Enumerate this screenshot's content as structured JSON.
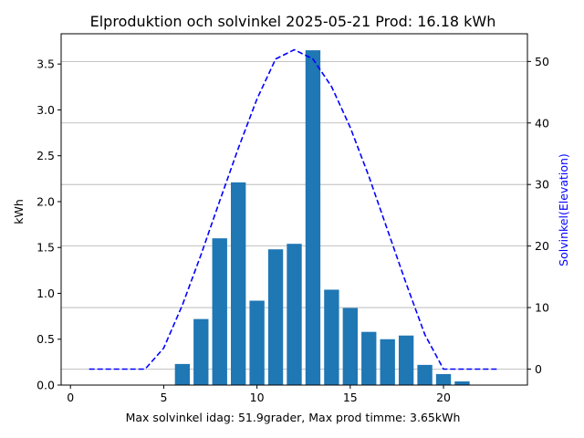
{
  "chart_data": {
    "type": "bar",
    "title": "Elproduktion och solvinkel 2025-05-21 Prod: 16.18 kWh",
    "xlabel": "Max solvinkel idag: 51.9grader, Max prod timme: 3.65kWh",
    "ylabel": "kWh",
    "y2label": "Solvinkel(Elevation)",
    "xlim": [
      -0.5,
      24.5
    ],
    "ylim": [
      0,
      3.83
    ],
    "y2lim": [
      -2.6,
      54.5
    ],
    "xticks": [
      0,
      5,
      10,
      15,
      20
    ],
    "yticks": [
      0.0,
      0.5,
      1.0,
      1.5,
      2.0,
      2.5,
      3.0,
      3.5
    ],
    "y2ticks": [
      0,
      10,
      20,
      30,
      40,
      50
    ],
    "grid": "y2",
    "series": [
      {
        "axis": "left",
        "kind": "bar",
        "color": "#1f77b4",
        "x": [
          6,
          7,
          8,
          9,
          10,
          11,
          12,
          13,
          14,
          15,
          16,
          17,
          18,
          19,
          20,
          21
        ],
        "values": [
          0.23,
          0.72,
          1.6,
          2.21,
          0.92,
          1.48,
          1.54,
          3.65,
          1.04,
          0.84,
          0.58,
          0.5,
          0.54,
          0.22,
          0.12,
          0.04
        ]
      },
      {
        "axis": "right",
        "kind": "line",
        "style": "dashed",
        "color": "#0000ff",
        "x": [
          1,
          2,
          3,
          4,
          5,
          6,
          7,
          8,
          9,
          10,
          11,
          12,
          13,
          14,
          15,
          16,
          17,
          18,
          19,
          20,
          21,
          22,
          23
        ],
        "values": [
          0,
          0,
          0,
          0,
          3.4,
          10.4,
          18.6,
          27.3,
          35.9,
          43.9,
          50.4,
          51.9,
          50.4,
          45.9,
          39.3,
          31.3,
          22.6,
          13.9,
          5.6,
          0,
          0,
          0,
          0
        ]
      }
    ]
  }
}
